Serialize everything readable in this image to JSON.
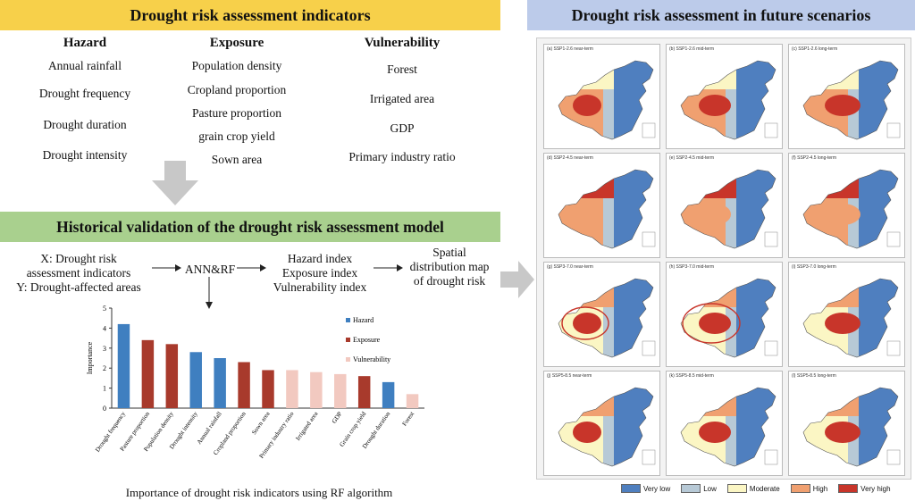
{
  "banners": {
    "indicators": "Drought risk assessment indicators",
    "validation": "Historical validation of the drought risk assessment model",
    "future": "Drought risk assessment in future scenarios"
  },
  "indicators": {
    "hazard": {
      "title": "Hazard",
      "items": [
        "Annual rainfall",
        "Drought frequency",
        "Drought duration",
        "Drought intensity"
      ]
    },
    "exposure": {
      "title": "Exposure",
      "items": [
        "Population density",
        "Cropland proportion",
        "Pasture proportion",
        "grain crop yield",
        "Sown area"
      ]
    },
    "vulnerability": {
      "title": "Vulnerability",
      "items": [
        "Forest",
        "Irrigated area",
        "GDP",
        "Primary industry ratio"
      ]
    }
  },
  "flow": {
    "x_label": "X: Drought risk",
    "x_label2": "assessment indicators",
    "y_label": "Y: Drought-affected areas",
    "model": "ANN&RF",
    "idx1": "Hazard index",
    "idx2": "Exposure index",
    "idx3": "Vulnerability index",
    "out1": "Spatial",
    "out2": "distribution map",
    "out3": "of drought risk"
  },
  "chart_data": {
    "type": "bar",
    "title": "",
    "caption": "Importance of drought risk indicators using RF algorithm",
    "ylabel": "Importance",
    "xlabel": "",
    "ylim": [
      0,
      5
    ],
    "yticks": [
      0,
      1,
      2,
      3,
      4,
      5
    ],
    "categories": [
      "Drought frequency",
      "Pasture proportion",
      "Population density",
      "Drought intensity",
      "Annual rainfall",
      "Cropland proportion",
      "Sown area",
      "Primary industry ratio",
      "Irrigated area",
      "GDP",
      "Grain crop yield",
      "Drought duration",
      "Forest"
    ],
    "values": [
      4.2,
      3.4,
      3.2,
      2.8,
      2.5,
      2.3,
      1.9,
      1.9,
      1.8,
      1.7,
      1.6,
      1.3,
      0.7
    ],
    "groups": [
      "Hazard",
      "Exposure",
      "Exposure",
      "Hazard",
      "Hazard",
      "Exposure",
      "Exposure",
      "Vulnerability",
      "Vulnerability",
      "Vulnerability",
      "Exposure",
      "Hazard",
      "Vulnerability"
    ],
    "legend": [
      {
        "name": "Hazard",
        "color": "#3f7fc0"
      },
      {
        "name": "Exposure",
        "color": "#a83a2c"
      },
      {
        "name": "Vulnerability",
        "color": "#f2c9c0"
      }
    ],
    "legend_position": "top-right",
    "grid": false
  },
  "maps": [
    {
      "caption": "(a) SSP1-2.6 near-term"
    },
    {
      "caption": "(b) SSP1-2.6 mid-term"
    },
    {
      "caption": "(c) SSP1-2.6 long-term"
    },
    {
      "caption": "(d) SSP2-4.5 near-term"
    },
    {
      "caption": "(e) SSP2-4.5 mid-term"
    },
    {
      "caption": "(f) SSP2-4.5 long-term"
    },
    {
      "caption": "(g) SSP3-7.0 near-term"
    },
    {
      "caption": "(h) SSP3-7.0 mid-term"
    },
    {
      "caption": "(i) SSP3-7.0 long-term"
    },
    {
      "caption": "(j) SSP5-8.5 near-term"
    },
    {
      "caption": "(k) SSP5-8.5 mid-term"
    },
    {
      "caption": "(l) SSP5-8.5 long-term"
    }
  ],
  "risk_legend": [
    {
      "label": "Very low",
      "color": "#4f7fbf"
    },
    {
      "label": "Low",
      "color": "#b7c9d6"
    },
    {
      "label": "Moderate",
      "color": "#fbf6c4"
    },
    {
      "label": "High",
      "color": "#f0a070"
    },
    {
      "label": "Very high",
      "color": "#c8352a"
    }
  ],
  "colors": {
    "arrow": "#c8c8c8"
  }
}
